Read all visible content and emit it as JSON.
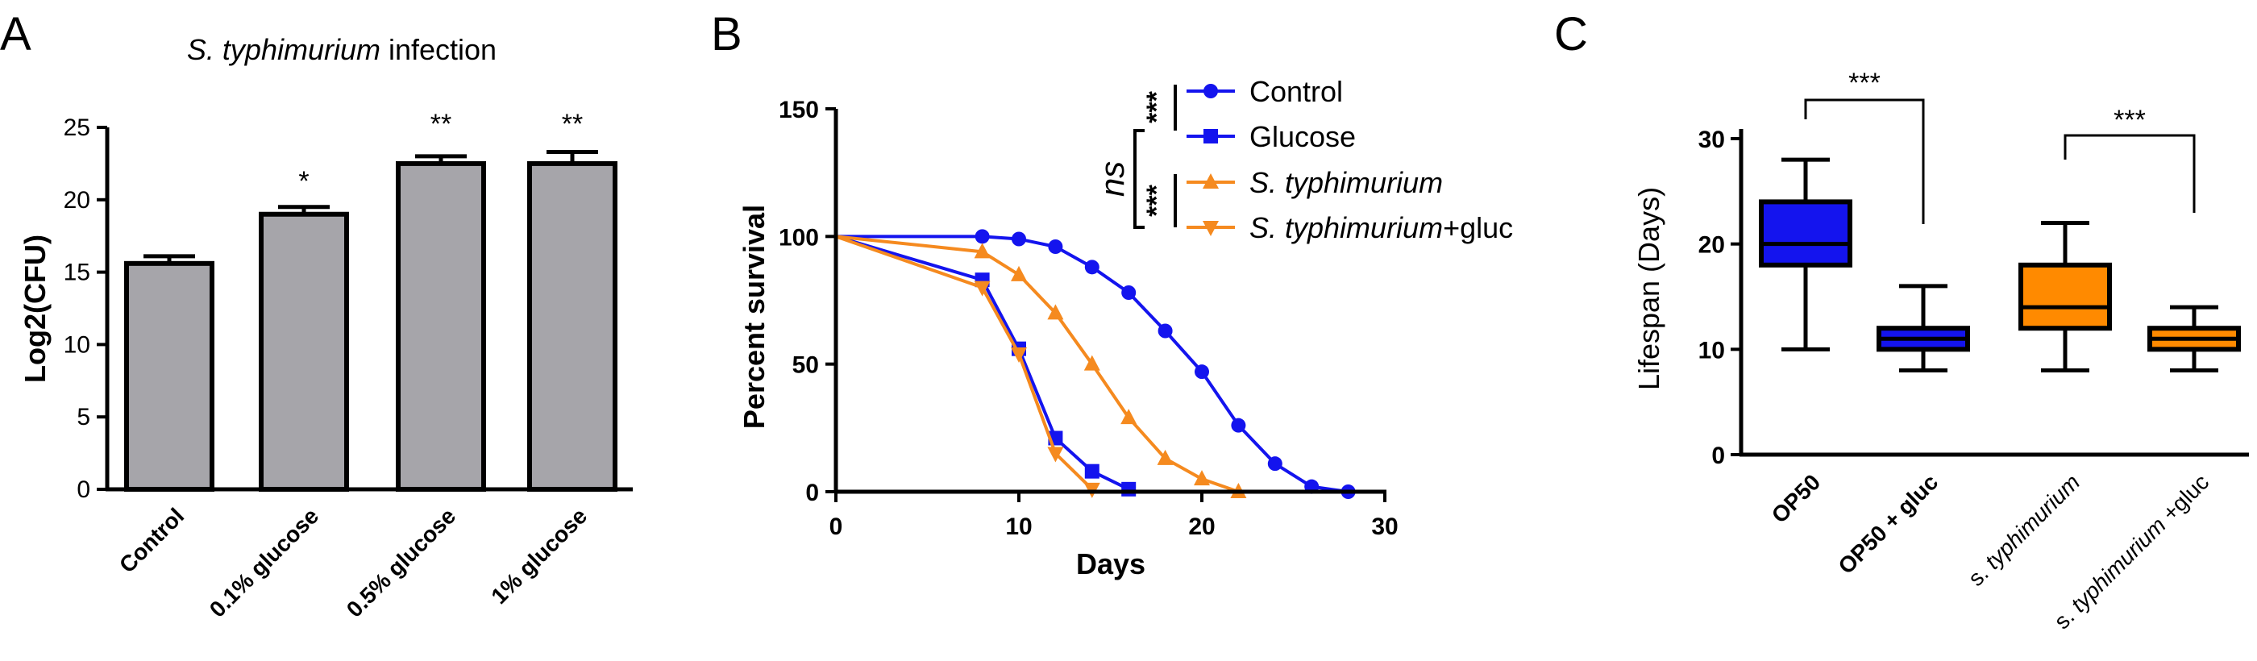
{
  "panels": {
    "a": {
      "letter": "A",
      "title_italic": "S. typhimurium",
      "title_rest": " infection",
      "ylabel": "Log2(CFU)",
      "yticks": [
        "0",
        "5",
        "10",
        "15",
        "20",
        "25"
      ],
      "categories": [
        "Control",
        "0.1% glucose",
        "0.5% glucose",
        "1% glucose"
      ],
      "significance": [
        "",
        "*",
        "**",
        "**"
      ]
    },
    "b": {
      "letter": "B",
      "ylabel": "Percent survival",
      "xlabel": "Days",
      "yticks": [
        "0",
        "50",
        "100",
        "150"
      ],
      "xticks": [
        "0",
        "10",
        "20",
        "30"
      ],
      "legend": [
        {
          "pre": "Control",
          "ital": "",
          "post": ""
        },
        {
          "pre": "Glucose",
          "ital": "",
          "post": ""
        },
        {
          "pre": "",
          "ital": "S. typhimurium",
          "post": ""
        },
        {
          "pre": "",
          "ital": "S. typhimurium",
          "post": "+gluc"
        }
      ],
      "sig_top": "***",
      "sig_bottom": "***",
      "sig_ns": "ns"
    },
    "c": {
      "letter": "C",
      "ylabel": "Lifespan (Days)",
      "yticks": [
        "0",
        "10",
        "20",
        "30"
      ],
      "categories": [
        {
          "pre": "OP50",
          "ital": "",
          "post": "",
          "bold": true
        },
        {
          "pre": "OP50 + gluc",
          "ital": "",
          "post": "",
          "bold": true
        },
        {
          "pre": "s. ",
          "ital": "typhimurium",
          "post": "",
          "bold": false
        },
        {
          "pre": "s. ",
          "ital": "typhimurium",
          "post": " +gluc",
          "bold": false
        }
      ],
      "sig_left": "***",
      "sig_right": "***"
    }
  },
  "colors": {
    "bar_fill": "#a6a5aa",
    "control": "#1414ee",
    "glucose": "#1414ee",
    "st": "#f58a1f",
    "st_gluc": "#f58a1f",
    "box_blue": "#1414ee",
    "box_orange": "#ff8a00"
  },
  "chart_data": [
    {
      "type": "bar",
      "title": "S. typhimurium infection",
      "ylabel": "Log2(CFU)",
      "ylim": [
        0,
        25
      ],
      "categories": [
        "Control",
        "0.1% glucose",
        "0.5% glucose",
        "1% glucose"
      ],
      "values": [
        15.6,
        19.0,
        22.5,
        22.5
      ],
      "errors": [
        0.5,
        0.5,
        0.5,
        0.8
      ]
    },
    {
      "type": "line",
      "xlabel": "Days",
      "ylabel": "Percent survival",
      "xlim": [
        0,
        30
      ],
      "ylim": [
        0,
        150
      ],
      "series": [
        {
          "name": "Control",
          "marker": "circle",
          "x": [
            0,
            8,
            10,
            12,
            14,
            16,
            18,
            20,
            22,
            24,
            26,
            28
          ],
          "y": [
            100,
            100,
            99,
            96,
            88,
            78,
            63,
            47,
            26,
            11,
            2,
            0
          ]
        },
        {
          "name": "Glucose",
          "marker": "square",
          "x": [
            0,
            8,
            10,
            12,
            14,
            16
          ],
          "y": [
            100,
            83,
            56,
            21,
            8,
            1
          ]
        },
        {
          "name": "S. typhimurium",
          "marker": "triangle-up",
          "x": [
            0,
            8,
            10,
            12,
            14,
            16,
            18,
            20,
            22
          ],
          "y": [
            100,
            94,
            85,
            70,
            50,
            29,
            13,
            5,
            0
          ]
        },
        {
          "name": "S. typhimurium+gluc",
          "marker": "triangle-down",
          "x": [
            0,
            8,
            10,
            12,
            14
          ],
          "y": [
            100,
            80,
            54,
            15,
            1
          ]
        }
      ]
    },
    {
      "type": "box",
      "ylabel": "Lifespan (Days)",
      "ylim": [
        0,
        30
      ],
      "categories": [
        "OP50",
        "OP50 + gluc",
        "s. typhimurium",
        "s. typhimurium +gluc"
      ],
      "boxes": [
        {
          "min": 10,
          "q1": 18,
          "median": 20,
          "q3": 24,
          "max": 28
        },
        {
          "min": 8,
          "q1": 10,
          "median": 11,
          "q3": 12,
          "max": 16
        },
        {
          "min": 8,
          "q1": 12,
          "median": 14,
          "q3": 18,
          "max": 22
        },
        {
          "min": 8,
          "q1": 10,
          "median": 11,
          "q3": 12,
          "max": 14
        }
      ]
    }
  ]
}
